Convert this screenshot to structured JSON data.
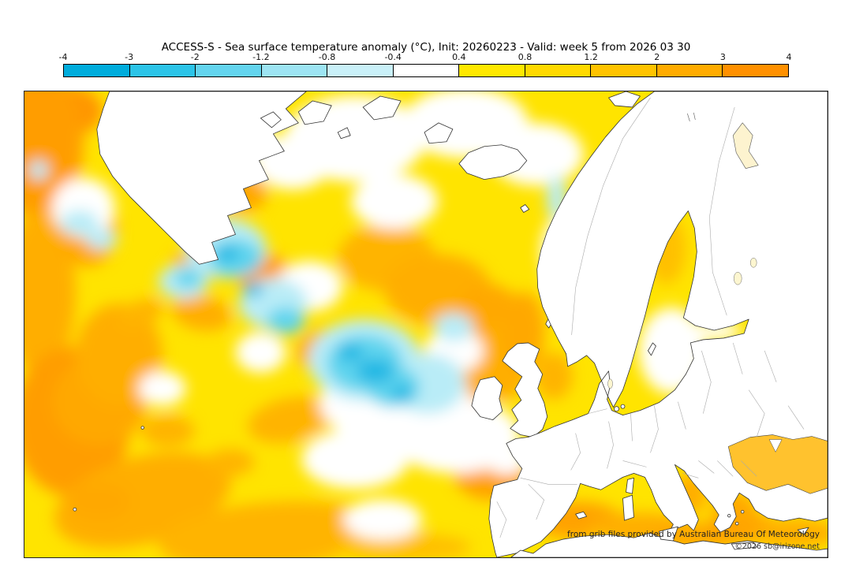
{
  "header": {
    "title": "ACCESS-S - Sea surface temperature anomaly (°C), Init: 20260223 - Valid: week 5 from 2026 03 30"
  },
  "colorbar": {
    "unit": "°C",
    "tick_labels": [
      "-4",
      "-3",
      "-2",
      "-1.2",
      "-0.8",
      "-0.4",
      "0.4",
      "0.8",
      "1.2",
      "2",
      "3",
      "4"
    ],
    "tick_values": [
      -4,
      -3,
      -2,
      -1.2,
      -0.8,
      -0.4,
      0.4,
      0.8,
      1.2,
      2,
      3,
      4
    ],
    "segment_colors": [
      "#00acdc",
      "#2cc4e8",
      "#63d4ee",
      "#9de4f3",
      "#c9f0f8",
      "#ffffff",
      "#ffe800",
      "#ffd900",
      "#ffc300",
      "#ffab00",
      "#ff9000"
    ]
  },
  "map": {
    "region": "North Atlantic Ocean and Europe",
    "credit_line1": "from grib files provided by Australian Bureau Of Meteorology",
    "credit_line2": "©2026 sb@irizone.net",
    "land_fill": "#ffffff",
    "coastline_color": "#333333",
    "border_color": "#aaaaaa",
    "ocean_colors": {
      "base_warm": "#ffe400",
      "warm": "#ffae00",
      "hot": "#ff9500",
      "neutral": "#ffffff",
      "cool": "#b9ecf7",
      "cold": "#5fd4ee",
      "coldest": "#23b8e4"
    },
    "anomaly_pattern": [
      {
        "area": "central North Atlantic south of Iceland",
        "anomaly_c": "-0.8 to -2"
      },
      {
        "area": "southeast of Greenland",
        "anomaly_c": "-0.4 to -1.2 with warm filaments"
      },
      {
        "area": "western and subtropical North Atlantic",
        "anomaly_c": "+0.4 to +2"
      },
      {
        "area": "Norwegian Sea and North Sea",
        "anomaly_c": "+0.4 to +1.2"
      },
      {
        "area": "Mediterranean Sea",
        "anomaly_c": "+0.8 to +2"
      },
      {
        "area": "Black Sea",
        "anomaly_c": "+0.8 to +1.2"
      }
    ]
  }
}
